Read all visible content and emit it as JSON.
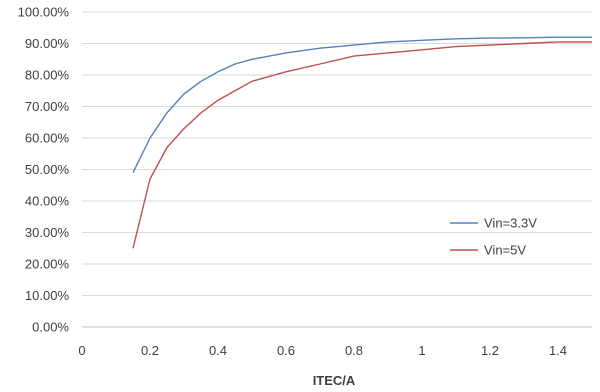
{
  "chart_data": {
    "type": "line",
    "title": "",
    "xlabel": "ITEC/A",
    "ylabel": "",
    "xlim": [
      0,
      1.5
    ],
    "ylim": [
      0,
      1.0
    ],
    "xticks": [
      "0",
      "0.2",
      "0.4",
      "0.6",
      "0.8",
      "1",
      "1.2",
      "1.4"
    ],
    "xtick_values": [
      0,
      0.2,
      0.4,
      0.6,
      0.8,
      1.0,
      1.2,
      1.4
    ],
    "yticks": [
      "0.00%",
      "10.00%",
      "20.00%",
      "30.00%",
      "40.00%",
      "50.00%",
      "60.00%",
      "70.00%",
      "80.00%",
      "90.00%",
      "100.00%"
    ],
    "ytick_values": [
      0,
      0.1,
      0.2,
      0.3,
      0.4,
      0.5,
      0.6,
      0.7,
      0.8,
      0.9,
      1.0
    ],
    "grid": "horizontal",
    "legend_position": "right",
    "series": [
      {
        "name": "Vin=3.3V",
        "color": "#4f81bd",
        "x": [
          0.15,
          0.2,
          0.25,
          0.3,
          0.35,
          0.4,
          0.45,
          0.5,
          0.6,
          0.7,
          0.8,
          0.9,
          1.0,
          1.1,
          1.2,
          1.3,
          1.4,
          1.5
        ],
        "y": [
          0.49,
          0.6,
          0.68,
          0.74,
          0.78,
          0.81,
          0.835,
          0.85,
          0.87,
          0.885,
          0.895,
          0.905,
          0.91,
          0.915,
          0.917,
          0.918,
          0.92,
          0.92
        ]
      },
      {
        "name": "Vin=5V",
        "color": "#c0504d",
        "x": [
          0.15,
          0.2,
          0.25,
          0.3,
          0.35,
          0.4,
          0.45,
          0.5,
          0.55,
          0.6,
          0.7,
          0.8,
          0.9,
          1.0,
          1.1,
          1.2,
          1.3,
          1.4,
          1.5
        ],
        "y": [
          0.25,
          0.47,
          0.57,
          0.63,
          0.68,
          0.72,
          0.75,
          0.78,
          0.795,
          0.81,
          0.835,
          0.86,
          0.87,
          0.88,
          0.89,
          0.895,
          0.9,
          0.905,
          0.905
        ]
      }
    ]
  }
}
